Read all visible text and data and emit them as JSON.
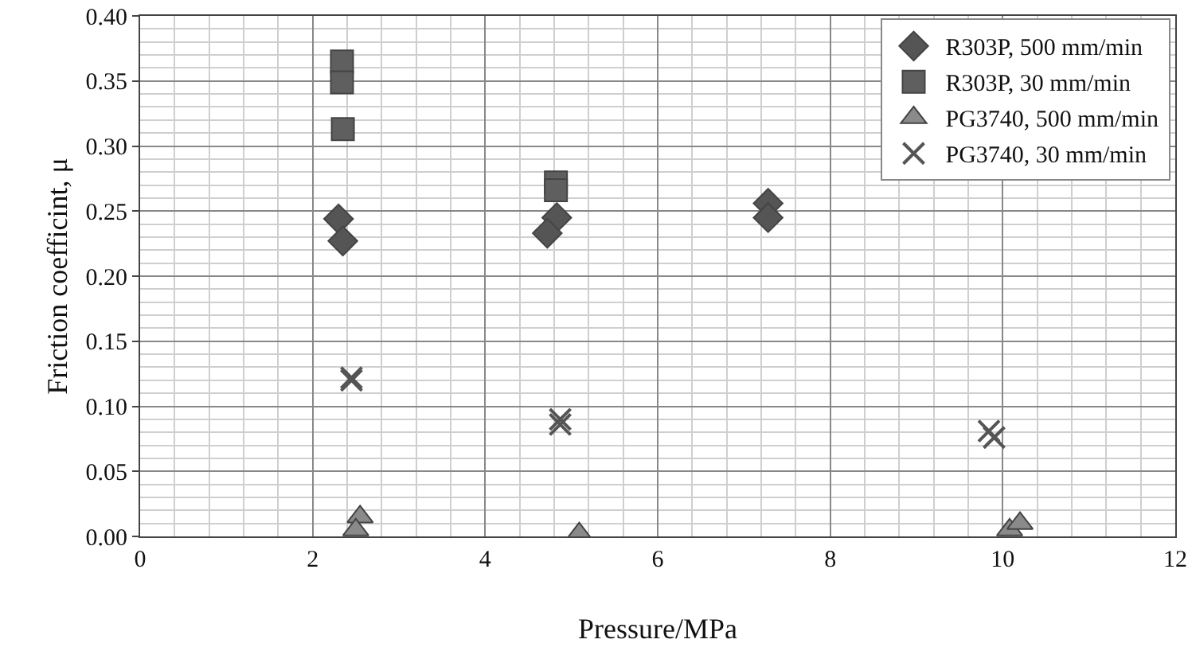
{
  "chart_data": {
    "type": "scatter",
    "xlabel": "Pressure/MPa",
    "ylabel": "Friction coefficint, μ",
    "xlim": [
      0,
      12
    ],
    "xticks": [
      0,
      2,
      4,
      6,
      8,
      10,
      12
    ],
    "ylim": [
      0,
      0.4
    ],
    "yticks": [
      {
        "value": 0,
        "label": "0.00"
      },
      {
        "value": 0.05,
        "label": "0.05"
      },
      {
        "value": 0.1,
        "label": "0.10"
      },
      {
        "value": 0.15,
        "label": "0.15"
      },
      {
        "value": 0.2,
        "label": "0.20"
      },
      {
        "value": 0.25,
        "label": "0.25"
      },
      {
        "value": 0.3,
        "label": "0.30"
      },
      {
        "value": 0.35,
        "label": "0.35"
      },
      {
        "value": 0.4,
        "label": "0.40"
      }
    ],
    "grid": true,
    "legend": "top right",
    "series": [
      {
        "name": "R303P, 500 mm/min",
        "color": "#555555",
        "marker": "diamond",
        "x": [
          2.3,
          2.35,
          4.83,
          4.72,
          7.28,
          7.28
        ],
        "values": [
          0.244,
          0.227,
          0.245,
          0.233,
          0.256,
          0.245
        ]
      },
      {
        "name": "R303P, 30 mm/min",
        "color": "#5f5f5f",
        "marker": "square",
        "x": [
          2.34,
          2.34,
          2.35,
          4.82,
          4.82
        ],
        "values": [
          0.365,
          0.349,
          0.313,
          0.272,
          0.266
        ]
      },
      {
        "name": "PG3740, 500 mm/min",
        "color": "#8a8a8a",
        "marker": "triangle",
        "x": [
          2.55,
          2.5,
          5.09,
          10.08,
          10.2
        ],
        "values": [
          0.015,
          0.005,
          0.002,
          0.005,
          0.01
        ]
      },
      {
        "name": "PG3740, 30 mm/min",
        "color": "#555555",
        "marker": "cross",
        "x": [
          2.45,
          2.45,
          4.87,
          4.87,
          9.84,
          9.9
        ],
        "values": [
          0.122,
          0.12,
          0.09,
          0.086,
          0.081,
          0.076
        ]
      }
    ]
  }
}
